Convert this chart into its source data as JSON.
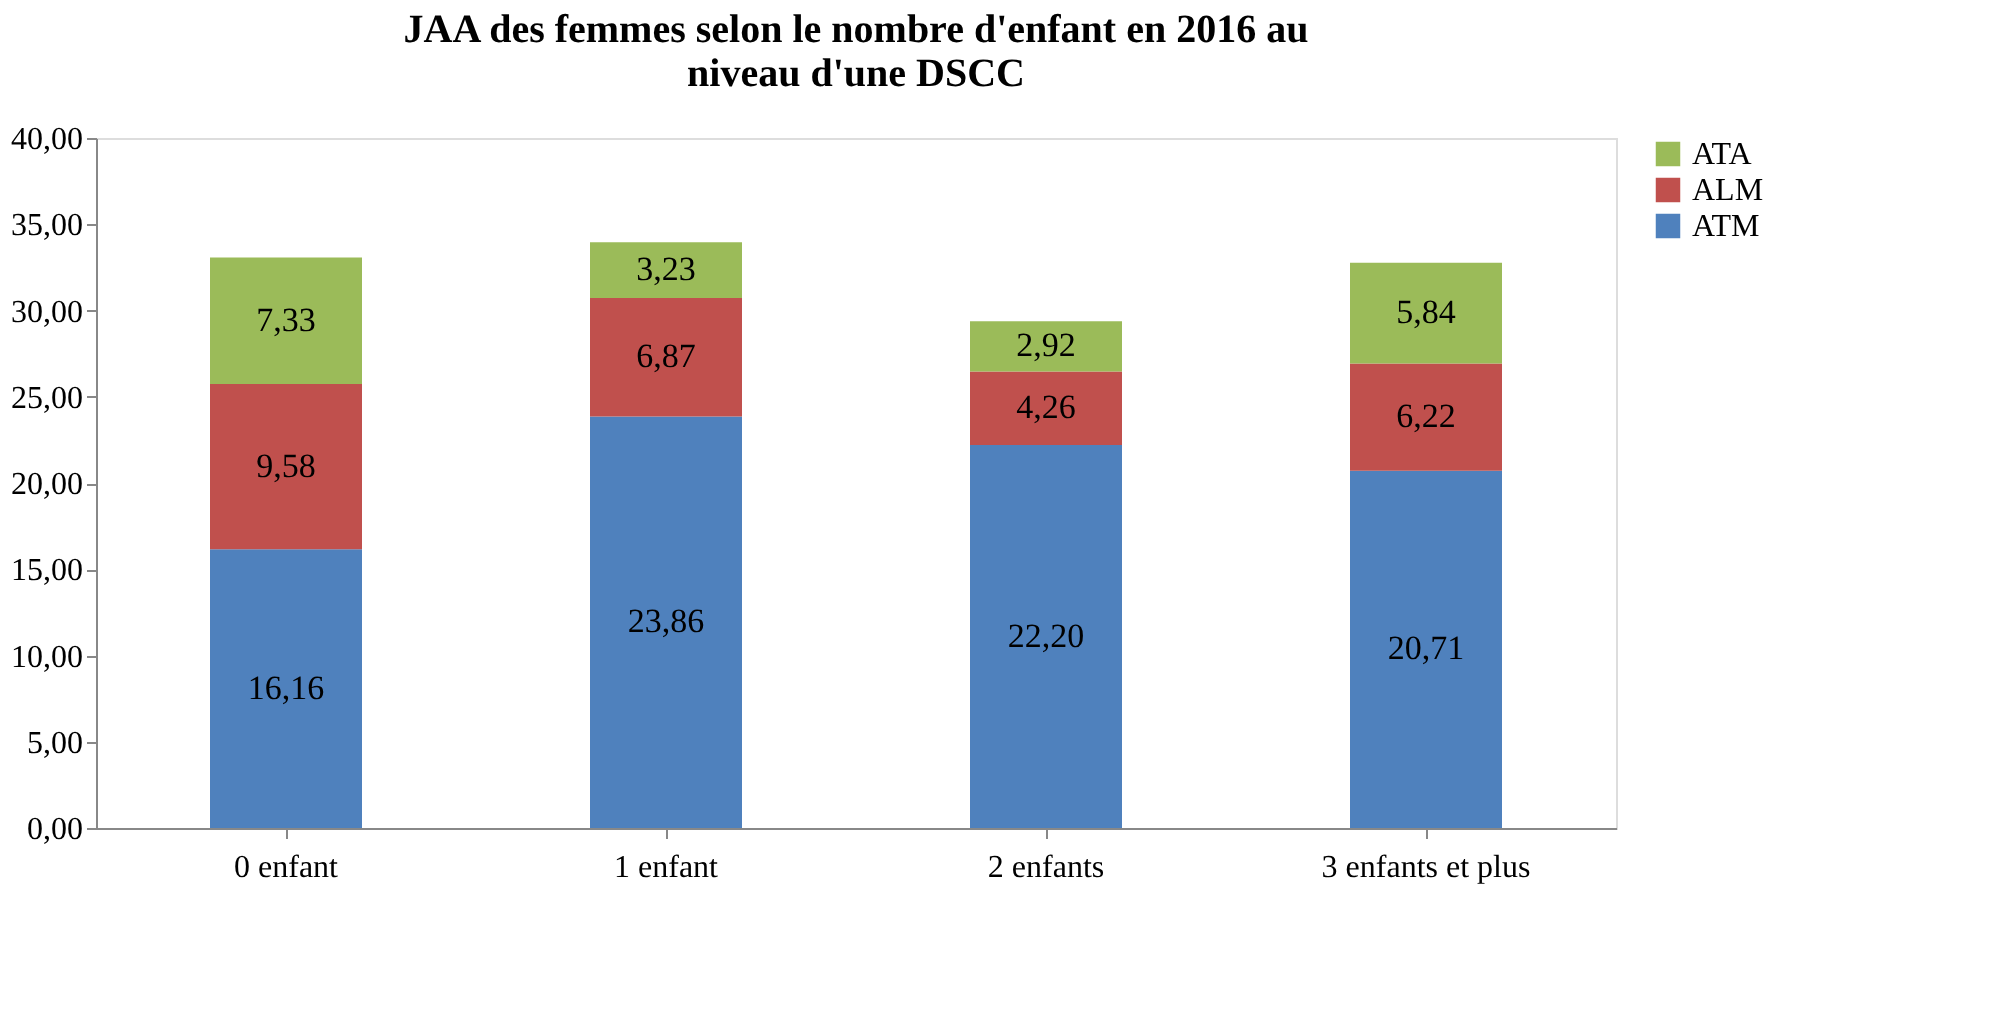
{
  "chart_data": {
    "type": "bar",
    "stacked": true,
    "title": "JAA des femmes selon le nombre d'enfant en 2016 au niveau d'une DSCC",
    "categories": [
      "0 enfant",
      "1 enfant",
      "2 enfants",
      "3 enfants et plus"
    ],
    "series": [
      {
        "name": "ATM",
        "color": "#4f81bd",
        "values": [
          16.16,
          23.86,
          22.2,
          20.71
        ],
        "value_labels": [
          "16,16",
          "23,86",
          "22,20",
          "20,71"
        ]
      },
      {
        "name": "ALM",
        "color": "#c0504d",
        "values": [
          9.58,
          6.87,
          4.26,
          6.22
        ],
        "value_labels": [
          "9,58",
          "6,87",
          "4,26",
          "6,22"
        ]
      },
      {
        "name": "ATA",
        "color": "#9bbb59",
        "values": [
          7.33,
          3.23,
          2.92,
          5.84
        ],
        "value_labels": [
          "7,33",
          "3,23",
          "2,92",
          "5,84"
        ]
      }
    ],
    "ylim": [
      0,
      40
    ],
    "yticks": [
      {
        "value": 0,
        "label": "0,00"
      },
      {
        "value": 5,
        "label": "5,00"
      },
      {
        "value": 10,
        "label": "10,00"
      },
      {
        "value": 15,
        "label": "15,00"
      },
      {
        "value": 20,
        "label": "20,00"
      },
      {
        "value": 25,
        "label": "25,00"
      },
      {
        "value": 30,
        "label": "30,00"
      },
      {
        "value": 35,
        "label": "35,00"
      },
      {
        "value": 40,
        "label": "40,00"
      }
    ],
    "grid": false,
    "legend": "right"
  }
}
